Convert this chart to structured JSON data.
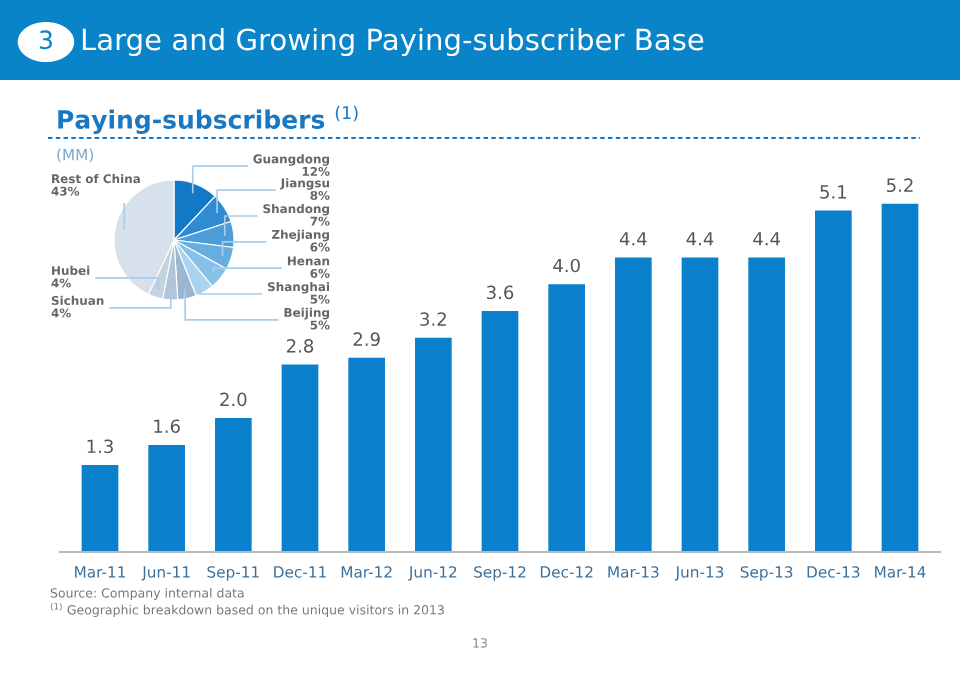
{
  "chart_data": [
    {
      "type": "bar",
      "title": "Large and Growing Paying-subscriber Base",
      "subtitle": "Paying-subscribers $^{(1)}$",
      "ylabel": "(MM)",
      "categories": [
        "Mar-11",
        "Jun-11",
        "Sep-11",
        "Dec-11",
        "Mar-12",
        "Jun-12",
        "Sep-12",
        "Dec-12",
        "Mar-13",
        "Jun-13",
        "Sep-13",
        "Dec-13",
        "Mar-14"
      ],
      "values": [
        1.3,
        1.6,
        2.0,
        2.8,
        2.9,
        3.2,
        3.6,
        4.0,
        4.4,
        4.4,
        4.4,
        5.1,
        5.2
      ],
      "value_labels": [
        "1.3",
        "1.6",
        "2.0",
        "2.8",
        "2.9",
        "3.2",
        "3.6",
        "4.0",
        "4.4",
        "4.4",
        "4.4",
        "5.1",
        "5.2"
      ],
      "color": "#0b80cc",
      "tick_labels": "x",
      "grid": false,
      "legend": false,
      "annotations": [
        "3",
        "Source: Company internal data",
        "$^{(1)}$ Geographic breakdown based on the unique visitors in 2013",
        "13"
      ]
    },
    {
      "type": "pie",
      "categories": [
        "Guangdong",
        "Jiangsu",
        "Shandong",
        "Zhejiang",
        "Henan",
        "Shanghai",
        "Beijing",
        "Sichuan",
        "Hubei",
        "Rest of China"
      ],
      "values": [
        12,
        8,
        7,
        6,
        6,
        5,
        5,
        4,
        4,
        43
      ],
      "value_labels": [
        "12%",
        "8%",
        "7%",
        "6%",
        "6%",
        "5%",
        "5%",
        "4%",
        "4%",
        "43%"
      ],
      "colors": [
        "#1279c6",
        "#2f8bd2",
        "#4b9cd9",
        "#66ade0",
        "#86c0e8",
        "#aad3f0",
        "#9db6cf",
        "#b2c5d8",
        "#c4d3e2",
        "#d6e1ec"
      ]
    }
  ]
}
